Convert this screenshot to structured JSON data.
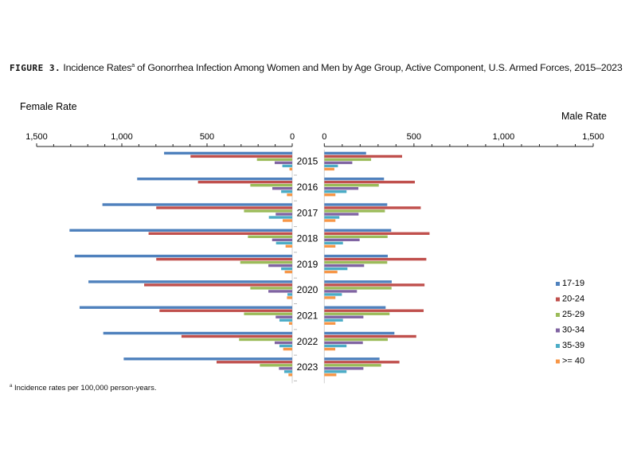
{
  "title": {
    "prefix": "FIGURE 3.",
    "text": "Incidence Rates",
    "superscript": "a",
    "rest": " of Gonorrhea Infection Among Women and Men by Age Group, Active Component, U.S. Armed Forces, 2015–2023"
  },
  "footnote": {
    "marker": "a",
    "text": " Incidence rates per 100,000 person-years."
  },
  "chart_data": {
    "type": "bar",
    "orientation": "horizontal",
    "layout": "back-to-back (population pyramid)",
    "categories": [
      "2015",
      "2016",
      "2017",
      "2018",
      "2019",
      "2020",
      "2021",
      "2022",
      "2023"
    ],
    "legend_position": "right",
    "grid": false,
    "panels": [
      {
        "label": "Female Rate",
        "direction": "left",
        "xlim": [
          0,
          1500
        ],
        "ticks": [
          "1,500",
          "1,000",
          "500",
          "0"
        ],
        "series": [
          {
            "name": "17-19",
            "color": "#4f81bd",
            "values": [
              752,
              910,
              1114,
              1307,
              1277,
              1196,
              1248,
              1109,
              989
            ]
          },
          {
            "name": "20-24",
            "color": "#c0504d",
            "values": [
              597,
              553,
              798,
              843,
              798,
              869,
              779,
              650,
              444
            ]
          },
          {
            "name": "25-29",
            "color": "#9bbb59",
            "values": [
              207,
              246,
              283,
              260,
              305,
              246,
              283,
              312,
              190
            ]
          },
          {
            "name": "30-34",
            "color": "#8064a2",
            "values": [
              103,
              117,
              97,
              118,
              140,
              140,
              97,
              103,
              78
            ]
          },
          {
            "name": "35-39",
            "color": "#4bacc6",
            "values": [
              58,
              65,
              137,
              95,
              65,
              28,
              75,
              75,
              47
            ]
          },
          {
            "name": ">= 40",
            "color": "#f79646",
            "values": [
              16,
              31,
              56,
              39,
              44,
              31,
              19,
              53,
              22
            ]
          }
        ]
      },
      {
        "label": "Male Rate",
        "direction": "right",
        "xlim": [
          0,
          1500
        ],
        "ticks": [
          "0",
          "500",
          "1,000",
          "1,500"
        ],
        "series": [
          {
            "name": "17-19",
            "color": "#4f81bd",
            "values": [
              233,
              333,
              351,
              373,
              354,
              376,
              342,
              391,
              308
            ]
          },
          {
            "name": "20-24",
            "color": "#c0504d",
            "values": [
              434,
              505,
              538,
              587,
              569,
              559,
              554,
              513,
              419
            ]
          },
          {
            "name": "25-29",
            "color": "#9bbb59",
            "values": [
              261,
              304,
              338,
              353,
              351,
              375,
              364,
              354,
              317
            ]
          },
          {
            "name": "30-34",
            "color": "#8064a2",
            "values": [
              156,
              190,
              191,
              197,
              222,
              182,
              218,
              215,
              218
            ]
          },
          {
            "name": "35-39",
            "color": "#4bacc6",
            "values": [
              76,
              124,
              84,
              104,
              129,
              98,
              104,
              124,
              124
            ]
          },
          {
            "name": ">= 40",
            "color": "#f79646",
            "values": [
              56,
              62,
              62,
              62,
              73,
              62,
              62,
              61,
              67
            ]
          }
        ]
      }
    ]
  }
}
